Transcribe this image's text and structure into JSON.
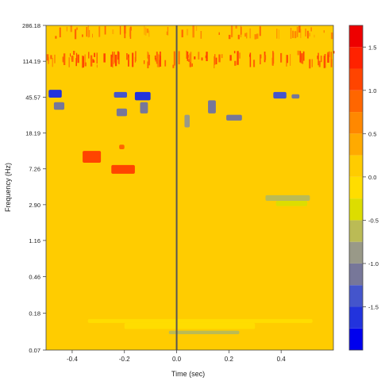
{
  "chart_data": {
    "type": "heatmap",
    "xlabel": "Time (sec)",
    "ylabel": "Frequency (Hz)",
    "xlim": [
      -0.5,
      0.6
    ],
    "x_ticks": [
      -0.4,
      -0.2,
      0.0,
      0.2,
      0.4
    ],
    "x_tick_labels": [
      "-0.4",
      "-0.2",
      "0.0",
      "0.2",
      "0.4"
    ],
    "y_scale": "log",
    "ylim": [
      0.07,
      286.18
    ],
    "y_ticks": [
      286.18,
      114.19,
      45.57,
      18.19,
      7.26,
      2.9,
      1.16,
      0.46,
      0.18,
      0.07
    ],
    "y_tick_labels": [
      "286.18",
      "114.19",
      "45.57",
      "18.19",
      "7.26",
      "2.90",
      "1.16",
      "0.46",
      "0.18",
      "0.07"
    ],
    "colorbar": {
      "levels": [
        -2.0,
        -1.75,
        -1.5,
        -1.25,
        -1.0,
        -0.75,
        -0.5,
        -0.25,
        0.0,
        0.25,
        0.5,
        0.75,
        1.0,
        1.25,
        1.5,
        1.75
      ],
      "colors": [
        "#0000ee",
        "#2233dd",
        "#4455cc",
        "#777799",
        "#999988",
        "#bbbb55",
        "#dddd00",
        "#ffdd00",
        "#ffcc00",
        "#ffaa00",
        "#ff8800",
        "#ff6600",
        "#ff4400",
        "#ff2200",
        "#ee0000"
      ],
      "ticks": [
        1.5,
        1.0,
        0.5,
        0.0,
        -0.5,
        -1.0,
        -1.5
      ],
      "tick_labels": [
        "1.5",
        "1.0",
        "0.5",
        "0.0",
        "-0.5",
        "-1.0",
        "-1.5"
      ]
    },
    "background_value": 0.0,
    "vertical_line_x": 0.0,
    "regions": [
      {
        "t0": -0.36,
        "t1": -0.29,
        "f0": 8.5,
        "f1": 11.5,
        "value": 1.0
      },
      {
        "t0": -0.25,
        "t1": -0.16,
        "f0": 6.4,
        "f1": 8.0,
        "value": 1.0
      },
      {
        "t0": -0.22,
        "t1": -0.2,
        "f0": 12.0,
        "f1": 13.5,
        "value": 0.75
      },
      {
        "t0": -0.49,
        "t1": -0.44,
        "f0": 45,
        "f1": 55,
        "value": -1.75
      },
      {
        "t0": -0.47,
        "t1": -0.43,
        "f0": 33,
        "f1": 40,
        "value": -1.25
      },
      {
        "t0": -0.16,
        "t1": -0.1,
        "f0": 42,
        "f1": 52,
        "value": -1.75
      },
      {
        "t0": -0.24,
        "t1": -0.19,
        "f0": 45,
        "f1": 52,
        "value": -1.5
      },
      {
        "t0": -0.14,
        "t1": -0.11,
        "f0": 30,
        "f1": 40,
        "value": -1.25
      },
      {
        "t0": -0.23,
        "t1": -0.19,
        "f0": 28,
        "f1": 34,
        "value": -1.25
      },
      {
        "t0": 0.19,
        "t1": 0.25,
        "f0": 25,
        "f1": 29,
        "value": -1.25
      },
      {
        "t0": 0.12,
        "t1": 0.15,
        "f0": 30,
        "f1": 42,
        "value": -1.25
      },
      {
        "t0": 0.03,
        "t1": 0.05,
        "f0": 21,
        "f1": 29,
        "value": -1.0
      },
      {
        "t0": 0.37,
        "t1": 0.42,
        "f0": 44,
        "f1": 52,
        "value": -1.5
      },
      {
        "t0": 0.44,
        "t1": 0.47,
        "f0": 44,
        "f1": 49,
        "value": -1.25
      },
      {
        "t0": 0.34,
        "t1": 0.51,
        "f0": 3.2,
        "f1": 3.7,
        "value": -0.75
      },
      {
        "t0": 0.38,
        "t1": 0.5,
        "f0": 2.8,
        "f1": 3.2,
        "value": -0.5
      },
      {
        "t0": -0.34,
        "t1": 0.52,
        "f0": 0.14,
        "f1": 0.155,
        "value": -0.25
      },
      {
        "t0": -0.2,
        "t1": 0.3,
        "f0": 0.12,
        "f1": 0.14,
        "value": -0.25
      },
      {
        "t0": -0.03,
        "t1": 0.24,
        "f0": 0.105,
        "f1": 0.115,
        "value": -0.75
      }
    ],
    "hf_activity_bands": [
      {
        "f0": 95,
        "f1": 150,
        "value": 1.25
      },
      {
        "f0": 200,
        "f1": 286,
        "value": 1.0
      }
    ]
  }
}
